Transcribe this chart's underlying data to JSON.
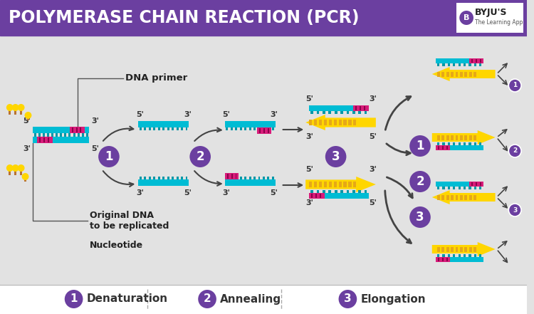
{
  "title": "POLYMERASE CHAIN REACTION (PCR)",
  "title_bg": "#6b3fa0",
  "title_color": "#ffffff",
  "bg_color": "#e2e2e2",
  "cyan_color": "#00bcd4",
  "cyan_dark": "#0097a7",
  "yellow_color": "#ffd600",
  "yellow_dark": "#e6a817",
  "magenta_color": "#d81b7a",
  "purple_circle": "#6b3fa0",
  "arrow_color": "#444444",
  "legend_items": [
    {
      "number": "1",
      "label": "Denaturation"
    },
    {
      "number": "2",
      "label": "Annealing"
    },
    {
      "number": "3",
      "label": "Elongation"
    }
  ],
  "labels": {
    "dna_primer": "DNA primer",
    "original_dna": "Original DNA\nto be replicated",
    "nucleotide": "Nucleotide"
  }
}
